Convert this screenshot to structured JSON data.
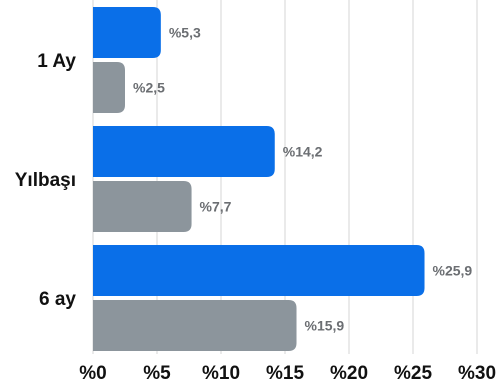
{
  "chart_data": {
    "type": "bar",
    "orientation": "horizontal",
    "categories": [
      "1 Ay",
      "Yılbaşı",
      "6 ay"
    ],
    "series": [
      {
        "values": [
          5.3,
          14.2,
          25.9
        ],
        "color": "#0a6fe8"
      },
      {
        "values": [
          2.5,
          7.7,
          15.9
        ],
        "color": "#8c959c"
      }
    ],
    "data_labels": [
      [
        "%5,3",
        "%14,2",
        "%25,9"
      ],
      [
        "%2,5",
        "%7,7",
        "%15,9"
      ]
    ],
    "x_ticks": [
      0,
      5,
      10,
      15,
      20,
      25,
      30
    ],
    "x_tick_labels": [
      "%0",
      "%5",
      "%10",
      "%15",
      "%20",
      "%25",
      "%30"
    ],
    "xlim": [
      0,
      30
    ],
    "grid": true,
    "legend": "none"
  }
}
